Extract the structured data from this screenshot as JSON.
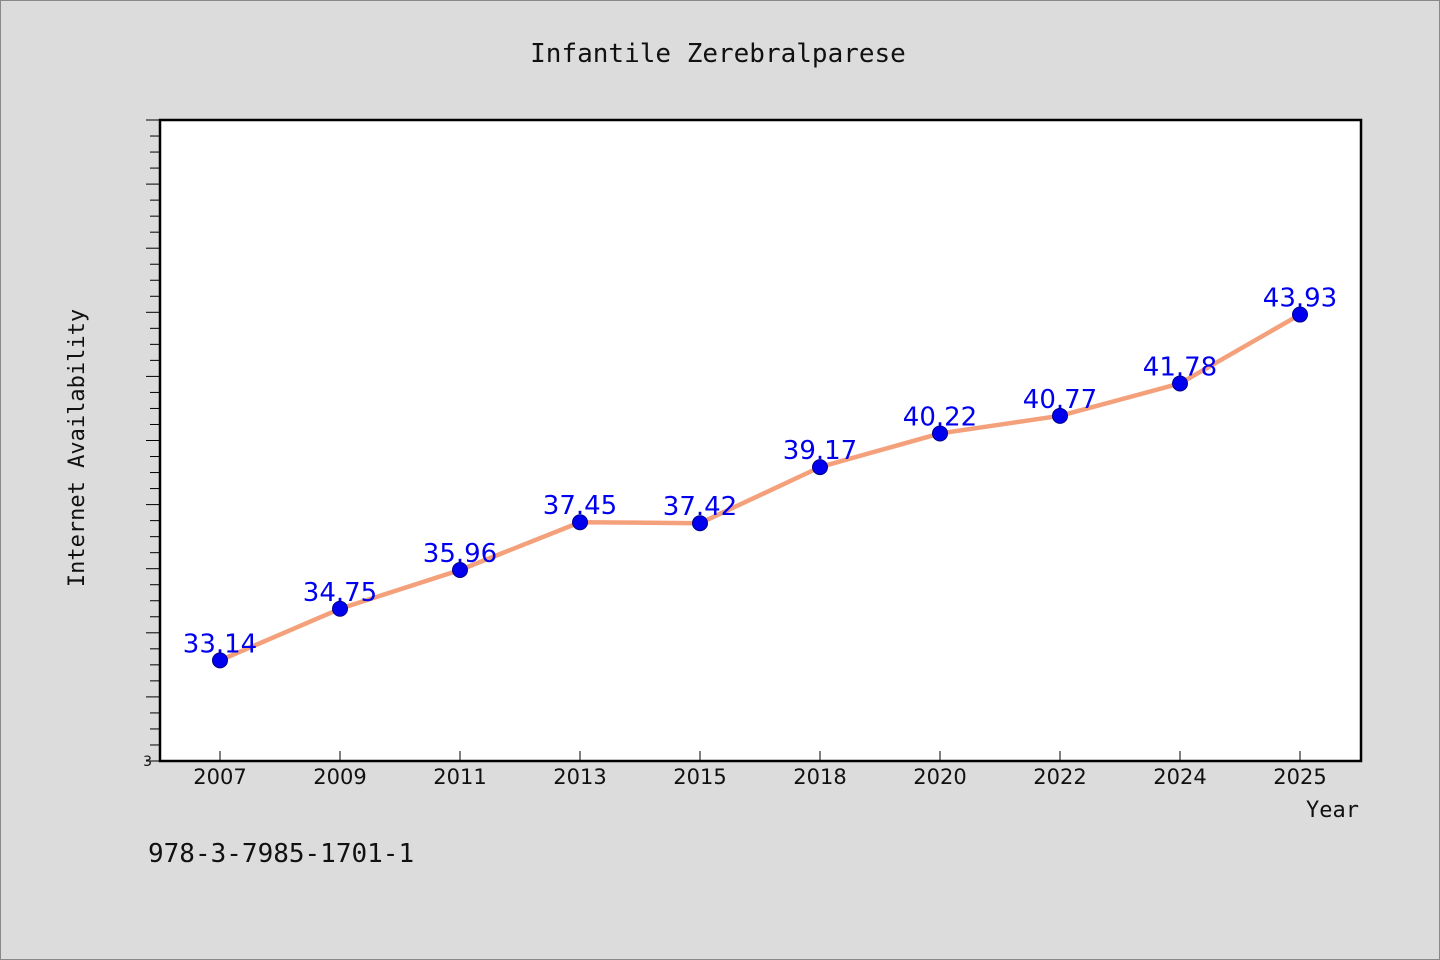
{
  "chart_data": {
    "type": "line",
    "title": "Infantile Zerebralparese",
    "xlabel": "Year",
    "ylabel": "Internet Availability",
    "categories": [
      "2007",
      "2009",
      "2011",
      "2013",
      "2015",
      "2018",
      "2020",
      "2022",
      "2024",
      "2025"
    ],
    "series": [
      {
        "values": [
          33.14,
          34.75,
          35.96,
          37.45,
          37.42,
          39.17,
          40.22,
          40.77,
          41.78,
          43.93
        ]
      }
    ],
    "ylim": [
      30,
      50
    ],
    "y_tick_labels": [
      "3"
    ],
    "grid": false,
    "legend": "none",
    "colors": {
      "line": "#f4a07a",
      "marker": "#0000ee",
      "label": "#0000ee"
    }
  },
  "footnote": "978-3-7985-1701-1"
}
